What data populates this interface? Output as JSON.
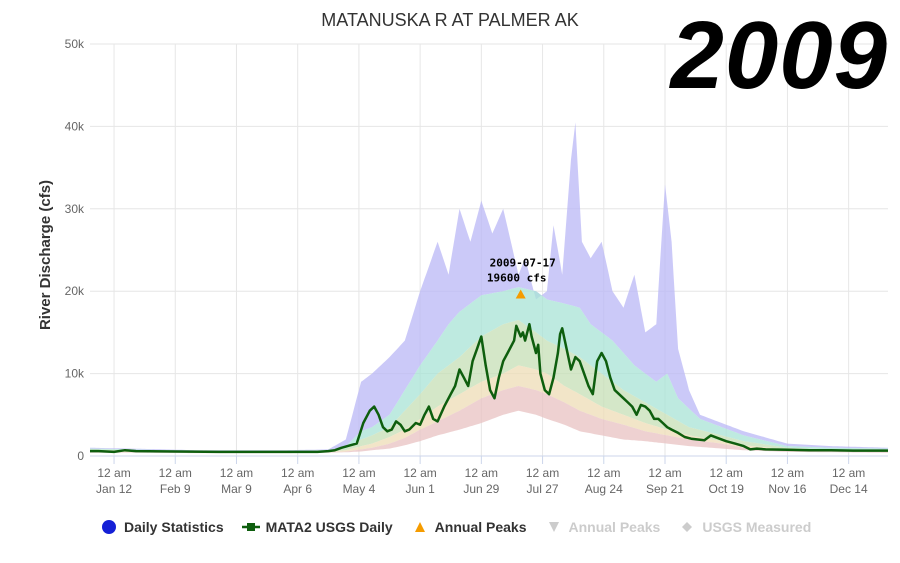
{
  "badge": "2009",
  "colors": {
    "daily_stats_max": "#b9b7f5",
    "pct_75_90": "#a8e3d6",
    "pct_25_75": "#c6dfb6",
    "pct_10_25": "#eedcb6",
    "pct_min_10": "#e8c2c2",
    "usgs_line": "#0e5e0e",
    "peak_marker": "#f59c00",
    "grid": "#e6e6e6",
    "axis_text": "#666666"
  },
  "legend": [
    {
      "label": "Daily Statistics",
      "icon": "circle-icon",
      "color": "#1520d6",
      "active": true
    },
    {
      "label": "MATA2 USGS Daily",
      "icon": "square-line-icon",
      "color": "#0e5e0e",
      "active": true
    },
    {
      "label": "Annual Peaks",
      "icon": "triangle-up-icon",
      "color": "#f59c00",
      "active": true
    },
    {
      "label": "Annual Peaks",
      "icon": "triangle-down-icon",
      "color": "#cccccc",
      "active": false
    },
    {
      "label": "USGS Measured",
      "icon": "diamond-icon",
      "color": "#cccccc",
      "active": false
    }
  ],
  "chart_data": {
    "type": "area",
    "title": "MATANUSKA R AT PALMER AK",
    "ylabel": "River Discharge (cfs)",
    "xlabel": "",
    "ylim": [
      0,
      50000
    ],
    "yticks": [
      0,
      10000,
      20000,
      30000,
      40000,
      50000
    ],
    "ytick_labels": [
      "0",
      "10k",
      "20k",
      "30k",
      "40k",
      "50k"
    ],
    "xlim_day": [
      1,
      366
    ],
    "xticks": [
      {
        "day": 12,
        "time": "12 am",
        "date": "Jan 12"
      },
      {
        "day": 40,
        "time": "12 am",
        "date": "Feb 9"
      },
      {
        "day": 68,
        "time": "12 am",
        "date": "Mar 9"
      },
      {
        "day": 96,
        "time": "12 am",
        "date": "Apr 6"
      },
      {
        "day": 124,
        "time": "12 am",
        "date": "May 4"
      },
      {
        "day": 152,
        "time": "12 am",
        "date": "Jun 1"
      },
      {
        "day": 180,
        "time": "12 am",
        "date": "Jun 29"
      },
      {
        "day": 208,
        "time": "12 am",
        "date": "Jul 27"
      },
      {
        "day": 236,
        "time": "12 am",
        "date": "Aug 24"
      },
      {
        "day": 264,
        "time": "12 am",
        "date": "Sep 21"
      },
      {
        "day": 292,
        "time": "12 am",
        "date": "Oct 19"
      },
      {
        "day": 320,
        "time": "12 am",
        "date": "Nov 16"
      },
      {
        "day": 348,
        "time": "12 am",
        "date": "Dec 14"
      }
    ],
    "grid": true,
    "legend_position": "bottom",
    "x_unit": "day of year",
    "bands": {
      "max": [
        [
          1,
          1000
        ],
        [
          20,
          900
        ],
        [
          50,
          700
        ],
        [
          90,
          700
        ],
        [
          110,
          800
        ],
        [
          118,
          2000
        ],
        [
          125,
          9000
        ],
        [
          130,
          10000
        ],
        [
          138,
          12000
        ],
        [
          145,
          14000
        ],
        [
          152,
          20000
        ],
        [
          160,
          26000
        ],
        [
          165,
          22000
        ],
        [
          170,
          30000
        ],
        [
          175,
          26000
        ],
        [
          180,
          31000
        ],
        [
          185,
          27000
        ],
        [
          190,
          30000
        ],
        [
          197,
          22000
        ],
        [
          200,
          24000
        ],
        [
          205,
          19000
        ],
        [
          210,
          20000
        ],
        [
          213,
          28000
        ],
        [
          217,
          22000
        ],
        [
          221,
          36000
        ],
        [
          223,
          40500
        ],
        [
          226,
          26000
        ],
        [
          230,
          24000
        ],
        [
          235,
          26000
        ],
        [
          240,
          20000
        ],
        [
          245,
          18000
        ],
        [
          250,
          22000
        ],
        [
          255,
          15000
        ],
        [
          260,
          16000
        ],
        [
          264,
          33000
        ],
        [
          267,
          26000
        ],
        [
          270,
          13000
        ],
        [
          275,
          8000
        ],
        [
          280,
          5000
        ],
        [
          290,
          4000
        ],
        [
          300,
          3000
        ],
        [
          320,
          1500
        ],
        [
          340,
          1200
        ],
        [
          366,
          1000
        ]
      ],
      "p90": [
        [
          1,
          900
        ],
        [
          20,
          800
        ],
        [
          50,
          600
        ],
        [
          90,
          600
        ],
        [
          110,
          700
        ],
        [
          118,
          1200
        ],
        [
          125,
          3000
        ],
        [
          130,
          3500
        ],
        [
          138,
          5000
        ],
        [
          145,
          8000
        ],
        [
          152,
          11000
        ],
        [
          160,
          14000
        ],
        [
          165,
          16000
        ],
        [
          170,
          17500
        ],
        [
          180,
          19500
        ],
        [
          190,
          20000
        ],
        [
          197,
          20500
        ],
        [
          205,
          20000
        ],
        [
          210,
          19000
        ],
        [
          218,
          18500
        ],
        [
          225,
          18000
        ],
        [
          230,
          16000
        ],
        [
          240,
          14000
        ],
        [
          250,
          11000
        ],
        [
          260,
          9000
        ],
        [
          265,
          10000
        ],
        [
          270,
          7000
        ],
        [
          280,
          4500
        ],
        [
          290,
          3500
        ],
        [
          300,
          2500
        ],
        [
          320,
          1200
        ],
        [
          340,
          1000
        ],
        [
          366,
          900
        ]
      ],
      "p75": [
        [
          1,
          800
        ],
        [
          20,
          700
        ],
        [
          50,
          550
        ],
        [
          90,
          550
        ],
        [
          110,
          650
        ],
        [
          118,
          900
        ],
        [
          125,
          2000
        ],
        [
          130,
          2500
        ],
        [
          138,
          3500
        ],
        [
          145,
          5500
        ],
        [
          152,
          7500
        ],
        [
          160,
          10000
        ],
        [
          170,
          12000
        ],
        [
          180,
          14500
        ],
        [
          190,
          16000
        ],
        [
          197,
          16500
        ],
        [
          205,
          15000
        ],
        [
          210,
          14000
        ],
        [
          218,
          13000
        ],
        [
          225,
          12000
        ],
        [
          235,
          10000
        ],
        [
          245,
          8000
        ],
        [
          255,
          6500
        ],
        [
          265,
          5000
        ],
        [
          275,
          3500
        ],
        [
          290,
          2500
        ],
        [
          300,
          1800
        ],
        [
          320,
          1000
        ],
        [
          340,
          800
        ],
        [
          366,
          700
        ]
      ],
      "p25": [
        [
          1,
          600
        ],
        [
          20,
          550
        ],
        [
          50,
          450
        ],
        [
          90,
          450
        ],
        [
          110,
          500
        ],
        [
          118,
          700
        ],
        [
          125,
          1200
        ],
        [
          130,
          1500
        ],
        [
          138,
          2300
        ],
        [
          145,
          3200
        ],
        [
          152,
          4500
        ],
        [
          160,
          6000
        ],
        [
          170,
          7500
        ],
        [
          180,
          9000
        ],
        [
          190,
          10000
        ],
        [
          197,
          11000
        ],
        [
          205,
          10500
        ],
        [
          210,
          10000
        ],
        [
          218,
          8500
        ],
        [
          225,
          7500
        ],
        [
          235,
          6000
        ],
        [
          245,
          5000
        ],
        [
          255,
          4000
        ],
        [
          265,
          3200
        ],
        [
          275,
          2500
        ],
        [
          290,
          1800
        ],
        [
          300,
          1300
        ],
        [
          320,
          800
        ],
        [
          340,
          650
        ],
        [
          366,
          600
        ]
      ],
      "p10": [
        [
          1,
          500
        ],
        [
          20,
          450
        ],
        [
          50,
          400
        ],
        [
          90,
          400
        ],
        [
          110,
          450
        ],
        [
          118,
          550
        ],
        [
          125,
          800
        ],
        [
          130,
          1000
        ],
        [
          138,
          1500
        ],
        [
          145,
          2200
        ],
        [
          152,
          3200
        ],
        [
          160,
          4200
        ],
        [
          170,
          5500
        ],
        [
          180,
          7000
        ],
        [
          190,
          8000
        ],
        [
          197,
          8500
        ],
        [
          205,
          8000
        ],
        [
          210,
          7500
        ],
        [
          218,
          6500
        ],
        [
          225,
          5500
        ],
        [
          235,
          4500
        ],
        [
          245,
          3800
        ],
        [
          255,
          3000
        ],
        [
          265,
          2500
        ],
        [
          275,
          2000
        ],
        [
          290,
          1500
        ],
        [
          300,
          1000
        ],
        [
          320,
          650
        ],
        [
          340,
          550
        ],
        [
          366,
          500
        ]
      ],
      "min": [
        [
          1,
          400
        ],
        [
          20,
          400
        ],
        [
          50,
          350
        ],
        [
          90,
          350
        ],
        [
          110,
          400
        ],
        [
          118,
          450
        ],
        [
          125,
          550
        ],
        [
          130,
          700
        ],
        [
          138,
          900
        ],
        [
          145,
          1300
        ],
        [
          152,
          1800
        ],
        [
          160,
          2500
        ],
        [
          170,
          3200
        ],
        [
          180,
          4000
        ],
        [
          190,
          5000
        ],
        [
          197,
          5500
        ],
        [
          205,
          5000
        ],
        [
          210,
          4500
        ],
        [
          218,
          3800
        ],
        [
          225,
          3000
        ],
        [
          235,
          2500
        ],
        [
          245,
          2000
        ],
        [
          255,
          1800
        ],
        [
          265,
          1500
        ],
        [
          275,
          1200
        ],
        [
          290,
          900
        ],
        [
          300,
          700
        ],
        [
          320,
          500
        ],
        [
          340,
          450
        ],
        [
          366,
          400
        ]
      ]
    },
    "series": [
      {
        "name": "MATA2 USGS Daily",
        "points": [
          [
            1,
            600
          ],
          [
            5,
            600
          ],
          [
            12,
            500
          ],
          [
            17,
            700
          ],
          [
            22,
            600
          ],
          [
            40,
            550
          ],
          [
            60,
            500
          ],
          [
            80,
            500
          ],
          [
            96,
            500
          ],
          [
            105,
            500
          ],
          [
            110,
            600
          ],
          [
            113,
            700
          ],
          [
            116,
            1000
          ],
          [
            120,
            1300
          ],
          [
            123,
            1500
          ],
          [
            126,
            4000
          ],
          [
            129,
            5500
          ],
          [
            131,
            6000
          ],
          [
            133,
            5000
          ],
          [
            135,
            3500
          ],
          [
            137,
            3000
          ],
          [
            139,
            3200
          ],
          [
            141,
            4200
          ],
          [
            143,
            3800
          ],
          [
            145,
            3000
          ],
          [
            147,
            3200
          ],
          [
            150,
            4000
          ],
          [
            152,
            3800
          ],
          [
            154,
            5000
          ],
          [
            156,
            6000
          ],
          [
            158,
            4500
          ],
          [
            160,
            4200
          ],
          [
            163,
            6000
          ],
          [
            166,
            7500
          ],
          [
            168,
            8500
          ],
          [
            170,
            10500
          ],
          [
            172,
            9500
          ],
          [
            174,
            8500
          ],
          [
            176,
            11500
          ],
          [
            178,
            13000
          ],
          [
            180,
            14500
          ],
          [
            182,
            11000
          ],
          [
            184,
            8000
          ],
          [
            186,
            7000
          ],
          [
            188,
            9500
          ],
          [
            190,
            11500
          ],
          [
            192,
            12500
          ],
          [
            195,
            14000
          ],
          [
            196,
            15800
          ],
          [
            198,
            14500
          ],
          [
            199,
            15000
          ],
          [
            200,
            14000
          ],
          [
            202,
            16000
          ],
          [
            203,
            14500
          ],
          [
            205,
            12500
          ],
          [
            206,
            13500
          ],
          [
            207,
            10000
          ],
          [
            209,
            8000
          ],
          [
            211,
            7500
          ],
          [
            213,
            9500
          ],
          [
            215,
            12500
          ],
          [
            216,
            14800
          ],
          [
            217,
            15500
          ],
          [
            219,
            13000
          ],
          [
            221,
            10500
          ],
          [
            223,
            12000
          ],
          [
            225,
            11500
          ],
          [
            227,
            10000
          ],
          [
            229,
            8500
          ],
          [
            231,
            7500
          ],
          [
            233,
            11500
          ],
          [
            235,
            12500
          ],
          [
            237,
            11500
          ],
          [
            239,
            9500
          ],
          [
            241,
            8000
          ],
          [
            243,
            7500
          ],
          [
            245,
            7000
          ],
          [
            247,
            6500
          ],
          [
            249,
            6000
          ],
          [
            251,
            5000
          ],
          [
            253,
            6200
          ],
          [
            255,
            6000
          ],
          [
            257,
            5500
          ],
          [
            259,
            4500
          ],
          [
            261,
            4500
          ],
          [
            263,
            4000
          ],
          [
            265,
            3500
          ],
          [
            267,
            3200
          ],
          [
            270,
            2800
          ],
          [
            273,
            2300
          ],
          [
            276,
            2100
          ],
          [
            279,
            2000
          ],
          [
            282,
            1900
          ],
          [
            285,
            2500
          ],
          [
            288,
            2200
          ],
          [
            292,
            1800
          ],
          [
            296,
            1500
          ],
          [
            300,
            1200
          ],
          [
            303,
            800
          ],
          [
            306,
            900
          ],
          [
            310,
            800
          ],
          [
            320,
            750
          ],
          [
            330,
            700
          ],
          [
            340,
            700
          ],
          [
            350,
            650
          ],
          [
            360,
            650
          ],
          [
            366,
            650
          ]
        ]
      }
    ],
    "annual_peak": {
      "label_date": "2009-07-17",
      "label_value": "19600 cfs",
      "day": 198,
      "value": 19600
    }
  }
}
